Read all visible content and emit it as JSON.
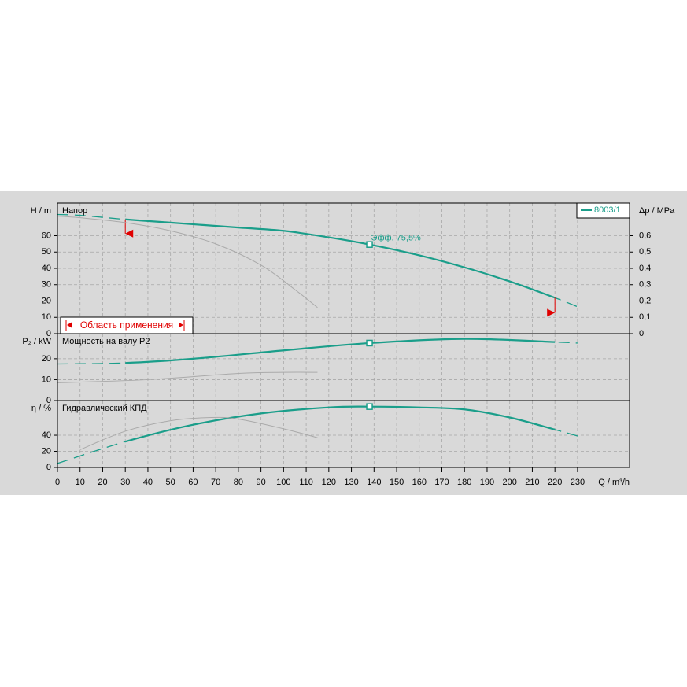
{
  "chart_data": [
    {
      "type": "line",
      "title": "Напор",
      "ylabel": "H / m",
      "y2label": "Δp / MPa",
      "xlim": [
        0,
        253
      ],
      "ylim": [
        0,
        80
      ],
      "yticks": [
        0,
        10,
        20,
        30,
        40,
        50,
        60
      ],
      "y2lim": [
        0,
        0.8
      ],
      "y2ticks": [
        0,
        {
          "value": 0.1,
          "label": "0,1"
        },
        {
          "value": 0.2,
          "label": "0,2"
        },
        {
          "value": 0.3,
          "label": "0,3"
        },
        {
          "value": 0.4,
          "label": "0,4"
        },
        {
          "value": 0.5,
          "label": "0,5"
        },
        {
          "value": 0.6,
          "label": "0,6"
        }
      ],
      "grid": true,
      "legend": "upper right",
      "series": [
        {
          "name": "8003/1",
          "color": "#1a9e8a",
          "x": [
            0,
            10,
            30,
            50,
            80,
            100,
            120,
            138,
            160,
            180,
            200,
            220,
            230
          ],
          "values": [
            73,
            72.5,
            70,
            68,
            65,
            63,
            59,
            54.6,
            48,
            40.6,
            32,
            22,
            16.5
          ]
        },
        {
          "color": "#aaaaaa",
          "x": [
            0,
            10,
            30,
            50,
            70,
            90,
            105,
            115
          ],
          "values": [
            72,
            71,
            68,
            63,
            55,
            42,
            27,
            16
          ]
        }
      ],
      "application_range": {
        "label": "Область применения",
        "x": [
          30,
          220
        ]
      },
      "annotation": {
        "text": "Эфф.  75,5%",
        "x": 138
      }
    },
    {
      "type": "line",
      "title": "Мощность на валу P2",
      "ylabel": "P₂ / kW",
      "xlim": [
        0,
        253
      ],
      "ylim": [
        0,
        32
      ],
      "yticks": [
        0,
        10,
        20
      ],
      "grid": true,
      "series": [
        {
          "color": "#1a9e8a",
          "x": [
            0,
            30,
            60,
            100,
            138,
            180,
            220,
            230
          ],
          "values": [
            17.5,
            18,
            20,
            24,
            27.5,
            29.5,
            28,
            27.5
          ]
        },
        {
          "color": "#aaaaaa",
          "x": [
            0,
            40,
            80,
            100,
            115
          ],
          "values": [
            8.5,
            10,
            13,
            13.5,
            13.5
          ]
        }
      ]
    },
    {
      "type": "line",
      "title": "Гидравлический КПД",
      "ylabel": "η / %",
      "xlabel": "Q / m³/h",
      "xlim": [
        0,
        253
      ],
      "ylim": [
        0,
        83
      ],
      "yticks": [
        0,
        20,
        40
      ],
      "grid": true,
      "xticks": [
        0,
        10,
        20,
        30,
        40,
        50,
        60,
        70,
        80,
        90,
        100,
        110,
        120,
        130,
        140,
        150,
        160,
        170,
        180,
        190,
        200,
        210,
        220,
        230
      ],
      "series": [
        {
          "color": "#1a9e8a",
          "x": [
            0,
            30,
            60,
            90,
            120,
            138,
            160,
            180,
            200,
            220,
            230
          ],
          "values": [
            5,
            32,
            53,
            67,
            74.5,
            75.5,
            74.5,
            72,
            62,
            47,
            39
          ]
        },
        {
          "color": "#aaaaaa",
          "x": [
            10,
            30,
            50,
            68,
            80,
            100,
            115
          ],
          "values": [
            22,
            45,
            58,
            62,
            60,
            48,
            37
          ]
        }
      ]
    }
  ]
}
